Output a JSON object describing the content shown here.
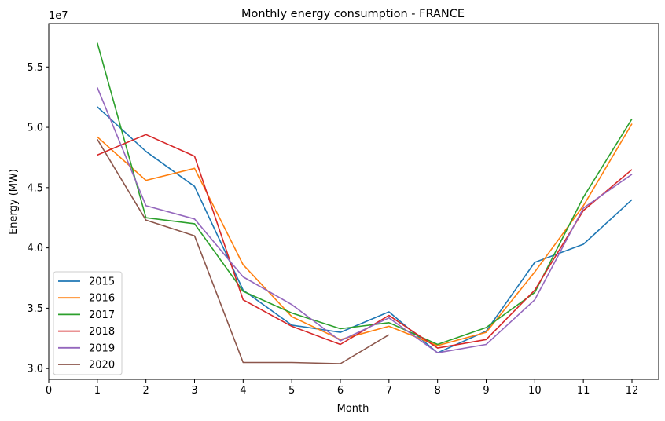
{
  "chart_data": {
    "type": "line",
    "title": "Monthly energy consumption - FRANCE",
    "xlabel": "Month",
    "ylabel": "Energy (MW)",
    "y_offset_label": "1e7",
    "xlim": [
      0,
      12.55
    ],
    "ylim": [
      29100000.0,
      58600000.0
    ],
    "x_ticks": [
      0,
      1,
      2,
      3,
      4,
      5,
      6,
      7,
      8,
      9,
      10,
      11,
      12
    ],
    "y_ticks": [
      30000000.0,
      35000000.0,
      40000000.0,
      45000000.0,
      50000000.0,
      55000000.0
    ],
    "y_tick_labels": [
      "3.0",
      "3.5",
      "4.0",
      "4.5",
      "5.0",
      "5.5"
    ],
    "grid": false,
    "legend_position": "lower-left",
    "series": [
      {
        "name": "2015",
        "color": "#1f77b4",
        "x": [
          1,
          2,
          3,
          4,
          5,
          6,
          7,
          8,
          9,
          10,
          11,
          12
        ],
        "values": [
          51700000.0,
          48000000.0,
          45100000.0,
          36500000.0,
          33600000.0,
          33000000.0,
          34700000.0,
          31300000.0,
          33100000.0,
          38800000.0,
          40300000.0,
          44000000.0
        ]
      },
      {
        "name": "2016",
        "color": "#ff7f0e",
        "x": [
          1,
          2,
          3,
          4,
          5,
          6,
          7,
          8,
          9,
          10,
          11,
          12
        ],
        "values": [
          49200000.0,
          45600000.0,
          46600000.0,
          38600000.0,
          34300000.0,
          32400000.0,
          33500000.0,
          31900000.0,
          33000000.0,
          38000000.0,
          43500000.0,
          50300000.0
        ]
      },
      {
        "name": "2017",
        "color": "#2ca02c",
        "x": [
          1,
          2,
          3,
          4,
          5,
          6,
          7,
          8,
          9,
          10,
          11,
          12
        ],
        "values": [
          57000000.0,
          42500000.0,
          42000000.0,
          36400000.0,
          34600000.0,
          33300000.0,
          33800000.0,
          32000000.0,
          33400000.0,
          36300000.0,
          44200000.0,
          50700000.0
        ]
      },
      {
        "name": "2018",
        "color": "#d62728",
        "x": [
          1,
          2,
          3,
          4,
          5,
          6,
          7,
          8,
          9,
          10,
          11,
          12
        ],
        "values": [
          47700000.0,
          49400000.0,
          47600000.0,
          35700000.0,
          33500000.0,
          32000000.0,
          34400000.0,
          31700000.0,
          32400000.0,
          36500000.0,
          43100000.0,
          46500000.0
        ]
      },
      {
        "name": "2019",
        "color": "#9467bd",
        "x": [
          1,
          2,
          3,
          4,
          5,
          6,
          7,
          8,
          9,
          10,
          11,
          12
        ],
        "values": [
          53300000.0,
          43500000.0,
          42400000.0,
          37600000.0,
          35300000.0,
          32300000.0,
          34200000.0,
          31300000.0,
          32000000.0,
          35700000.0,
          43300000.0,
          46100000.0
        ]
      },
      {
        "name": "2020",
        "color": "#8c564b",
        "x": [
          1,
          2,
          3,
          4,
          5,
          6,
          7
        ],
        "values": [
          49000000.0,
          42300000.0,
          41000000.0,
          30500000.0,
          30500000.0,
          30400000.0,
          32800000.0
        ]
      }
    ]
  }
}
